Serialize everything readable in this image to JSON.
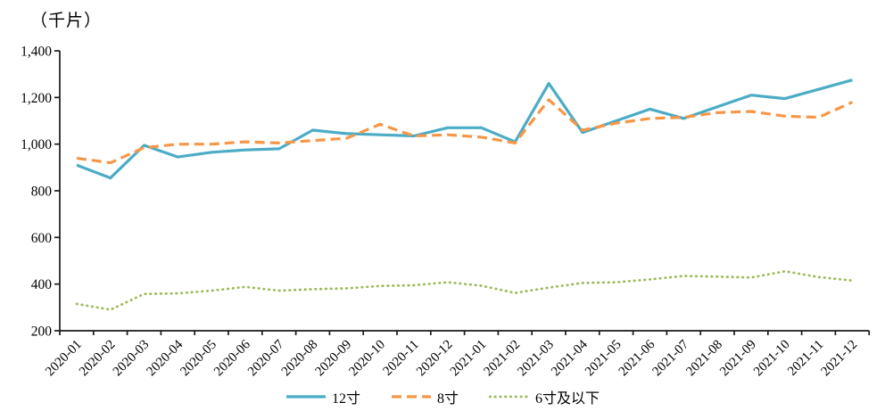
{
  "chart_data": {
    "type": "line",
    "title": "",
    "unit_label": "（千片）",
    "xlabel": "",
    "ylabel": "",
    "ylim": [
      200,
      1400
    ],
    "ytick_values": [
      200,
      400,
      600,
      800,
      1000,
      1200,
      1400
    ],
    "ytick_labels": [
      "200",
      "400",
      "600",
      "800",
      "1,000",
      "1,200",
      "1,400"
    ],
    "grid": "off",
    "legend_position": "bottom",
    "categories": [
      "2020-01",
      "2020-02",
      "2020-03",
      "2020-04",
      "2020-05",
      "2020-06",
      "2020-07",
      "2020-08",
      "2020-09",
      "2020-10",
      "2020-11",
      "2020-12",
      "2021-01",
      "2021-02",
      "2021-03",
      "2021-04",
      "2021-05",
      "2021-06",
      "2021-07",
      "2021-08",
      "2021-09",
      "2021-10",
      "2021-11",
      "2021-12"
    ],
    "series": [
      {
        "id": "12in",
        "name": "12寸",
        "color": "#4BACC6",
        "style": "solid",
        "values": [
          910,
          855,
          995,
          945,
          965,
          975,
          980,
          1060,
          1045,
          1040,
          1035,
          1070,
          1070,
          1010,
          1260,
          1050,
          1100,
          1150,
          1110,
          1160,
          1210,
          1195,
          1235,
          1275
        ]
      },
      {
        "id": "8in",
        "name": "8寸",
        "color": "#F79646",
        "style": "dashed",
        "values": [
          940,
          920,
          985,
          1000,
          1000,
          1010,
          1005,
          1015,
          1025,
          1085,
          1035,
          1040,
          1030,
          1005,
          1190,
          1060,
          1090,
          1110,
          1115,
          1135,
          1140,
          1120,
          1115,
          1180
        ]
      },
      {
        "id": "6in",
        "name": "6寸及以下",
        "color": "#9BBB59",
        "style": "dotted",
        "values": [
          315,
          290,
          358,
          360,
          372,
          388,
          372,
          378,
          382,
          392,
          395,
          408,
          393,
          362,
          385,
          405,
          408,
          420,
          435,
          432,
          428,
          455,
          430,
          415
        ]
      }
    ]
  }
}
